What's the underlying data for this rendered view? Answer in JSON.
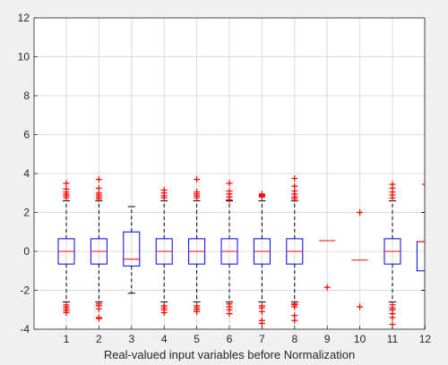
{
  "chart_data": {
    "type": "box",
    "title": "",
    "xlabel": "Real-valued input variables before Normalization",
    "ylabel": "",
    "ylim": [
      -4,
      12
    ],
    "yticks": [
      -4,
      -2,
      0,
      2,
      4,
      6,
      8,
      10,
      12
    ],
    "categories": [
      "1",
      "2",
      "3",
      "4",
      "5",
      "6",
      "7",
      "8",
      "9",
      "10",
      "11",
      "12"
    ],
    "grid": true,
    "colors": {
      "box": "#0000ff",
      "median": "#ff0000",
      "outlier": "#ff0000",
      "whisker": "#000000",
      "grid": "#dcdcdc"
    },
    "boxes": [
      {
        "label": "1",
        "q1": -0.65,
        "median": 0.0,
        "q3": 0.65,
        "whisker_low": -2.6,
        "whisker_high": 2.6,
        "outliers": [
          -3.15,
          -3.05,
          -2.95,
          -2.85,
          -2.75,
          2.75,
          2.85,
          2.95,
          3.05,
          3.2,
          3.5
        ]
      },
      {
        "label": "2",
        "q1": -0.65,
        "median": 0.0,
        "q3": 0.65,
        "whisker_low": -2.6,
        "whisker_high": 2.6,
        "outliers": [
          -3.45,
          -3.4,
          -2.95,
          -2.8,
          -2.7,
          2.7,
          2.8,
          2.9,
          3.0,
          3.25,
          3.7
        ]
      },
      {
        "label": "3",
        "q1": -0.75,
        "median": -0.4,
        "q3": 1.0,
        "whisker_low": -2.15,
        "whisker_high": 2.3,
        "outliers": []
      },
      {
        "label": "4",
        "q1": -0.65,
        "median": 0.0,
        "q3": 0.65,
        "whisker_low": -2.6,
        "whisker_high": 2.6,
        "outliers": [
          -3.15,
          -3.0,
          -2.9,
          -2.8,
          2.75,
          2.85,
          3.0,
          3.15
        ]
      },
      {
        "label": "5",
        "q1": -0.65,
        "median": 0.0,
        "q3": 0.65,
        "whisker_low": -2.6,
        "whisker_high": 2.6,
        "outliers": [
          -3.1,
          -3.0,
          -2.9,
          -2.8,
          2.75,
          2.85,
          2.95,
          3.05,
          3.7
        ]
      },
      {
        "label": "6",
        "q1": -0.65,
        "median": 0.0,
        "q3": 0.65,
        "whisker_low": -2.6,
        "whisker_high": 2.6,
        "outliers": [
          -3.2,
          -3.0,
          -2.85,
          -2.7,
          2.65,
          2.8,
          2.95,
          3.1,
          3.5
        ]
      },
      {
        "label": "7",
        "q1": -0.65,
        "median": 0.0,
        "q3": 0.65,
        "whisker_low": -2.6,
        "whisker_high": 2.6,
        "outliers": [
          -3.7,
          -3.55,
          -3.1,
          -2.9,
          -2.8,
          2.8,
          2.85,
          2.9,
          2.95
        ]
      },
      {
        "label": "8",
        "q1": -0.65,
        "median": 0.0,
        "q3": 0.65,
        "whisker_low": -2.6,
        "whisker_high": 2.6,
        "outliers": [
          -3.55,
          -3.3,
          -2.85,
          -2.75,
          -2.7,
          2.7,
          2.8,
          2.95,
          3.1,
          3.35,
          3.75
        ]
      },
      {
        "label": "9",
        "q1": 0.55,
        "median": 0.55,
        "q3": 0.55,
        "whisker_low": 0.55,
        "whisker_high": 0.55,
        "outliers": [
          -1.85
        ]
      },
      {
        "label": "10",
        "q1": -0.45,
        "median": -0.45,
        "q3": -0.45,
        "whisker_low": -0.45,
        "whisker_high": -0.45,
        "outliers": [
          -2.85,
          2.0
        ]
      },
      {
        "label": "11",
        "q1": -0.65,
        "median": 0.0,
        "q3": 0.65,
        "whisker_low": -2.6,
        "whisker_high": 2.6,
        "outliers": [
          -3.75,
          -3.4,
          -3.2,
          -3.0,
          -2.9,
          -2.75,
          2.75,
          2.9,
          3.05,
          3.25,
          3.45
        ]
      },
      {
        "label": "12",
        "q1": -1.0,
        "median": 0.5,
        "q3": 0.5,
        "whisker_low": -2.0,
        "whisker_high": 2.0,
        "outliers": [
          3.45
        ]
      }
    ]
  }
}
